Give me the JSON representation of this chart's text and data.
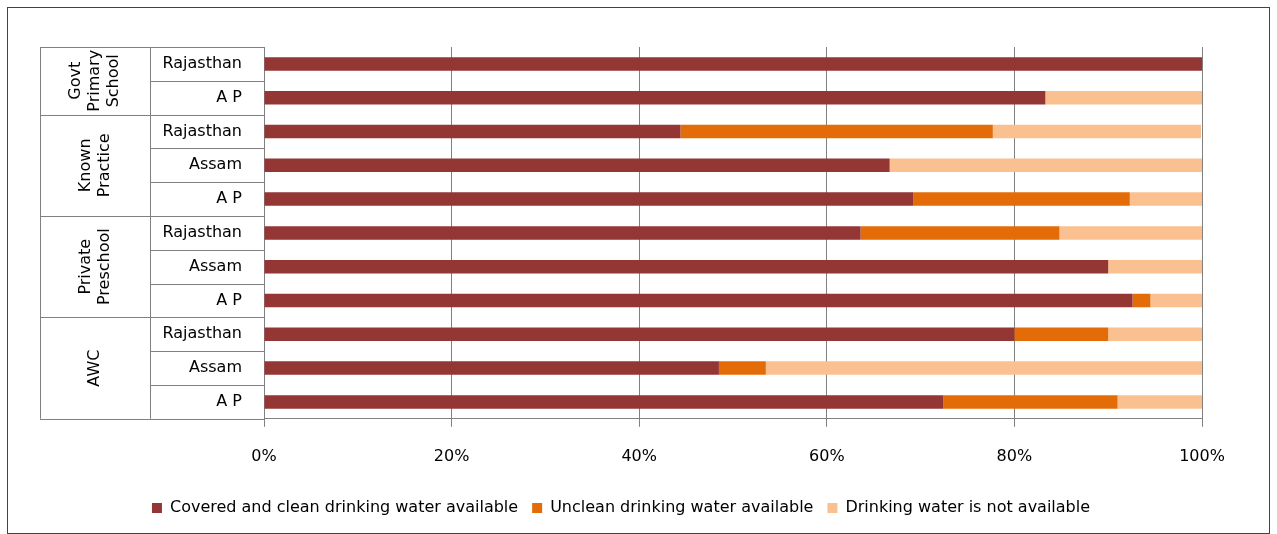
{
  "chart_data": {
    "type": "bar",
    "orientation": "horizontal",
    "stacked": true,
    "categories": [
      "Rajasthan",
      "A P",
      "Rajasthan",
      "Assam",
      "A P",
      "Rajasthan",
      "Assam",
      "A P",
      "Rajasthan",
      "Assam",
      "A P"
    ],
    "series": [
      {
        "name": "Covered and clean drinking water available",
        "color": "#943634",
        "values": [
          100,
          83.3,
          44.4,
          66.7,
          69.2,
          63.6,
          90,
          92.6,
          80,
          48.5,
          72.4
        ]
      },
      {
        "name": "Unclean drinking water available",
        "color": "#e36c09",
        "values": [
          0,
          0,
          33.3,
          0,
          23.1,
          21.2,
          0,
          1.9,
          10,
          5,
          18.6
        ]
      },
      {
        "name": "Drinking water is not available",
        "color": "#fac090",
        "values": [
          0,
          16.7,
          22.2,
          33.3,
          7.7,
          15.2,
          10,
          5.5,
          10,
          46.5,
          9
        ]
      }
    ],
    "xlim": [
      0,
      100
    ],
    "xticks": [
      {
        "value": 0,
        "label": "0%"
      },
      {
        "value": 20,
        "label": "20%"
      },
      {
        "value": 40,
        "label": "40%"
      },
      {
        "value": 60,
        "label": "60%"
      },
      {
        "value": 80,
        "label": "80%"
      },
      {
        "value": 100,
        "label": "100%"
      }
    ],
    "annotations": [
      "Govt Primary School",
      "Known Practice",
      "Private Preschool",
      "AWC"
    ],
    "grid": "x",
    "legend": "bottom"
  }
}
